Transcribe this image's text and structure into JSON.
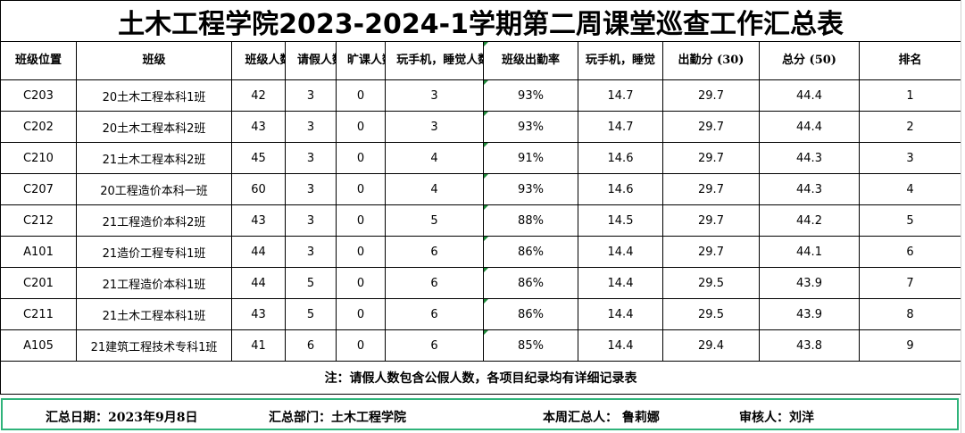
{
  "title": "土木工程学院2023-2024-1学期第二周课堂巡查工作汇总表",
  "headers": {
    "location": "班级位置",
    "class": "班级",
    "size": "班级人数",
    "leave": "请假人数",
    "absent": "旷课人数",
    "phone_sleep_count": "玩手机，睡觉人数",
    "attendance_rate": "班级出勤率",
    "phone_sleep_score": "玩手机，睡觉",
    "attendance_score": "出勤分 (30)",
    "total_score": "总分 (50)",
    "rank": "排名"
  },
  "rows": [
    {
      "location": "C203",
      "class": "20土木工程本科1班",
      "size": "42",
      "leave": "3",
      "absent": "0",
      "phone_sleep_count": "3",
      "attendance_rate": "93%",
      "phone_sleep_score": "14.7",
      "attendance_score": "29.7",
      "total_score": "44.4",
      "rank": "1"
    },
    {
      "location": "C202",
      "class": "20土木工程本科2班",
      "size": "43",
      "leave": "3",
      "absent": "0",
      "phone_sleep_count": "3",
      "attendance_rate": "93%",
      "phone_sleep_score": "14.7",
      "attendance_score": "29.7",
      "total_score": "44.4",
      "rank": "2"
    },
    {
      "location": "C210",
      "class": "21土木工程本科2班",
      "size": "45",
      "leave": "3",
      "absent": "0",
      "phone_sleep_count": "4",
      "attendance_rate": "91%",
      "phone_sleep_score": "14.6",
      "attendance_score": "29.7",
      "total_score": "44.3",
      "rank": "3"
    },
    {
      "location": "C207",
      "class": "20工程造价本科一班",
      "size": "60",
      "leave": "3",
      "absent": "0",
      "phone_sleep_count": "4",
      "attendance_rate": "93%",
      "phone_sleep_score": "14.6",
      "attendance_score": "29.7",
      "total_score": "44.3",
      "rank": "4"
    },
    {
      "location": "C212",
      "class": "21工程造价本科2班",
      "size": "43",
      "leave": "3",
      "absent": "0",
      "phone_sleep_count": "5",
      "attendance_rate": "88%",
      "phone_sleep_score": "14.5",
      "attendance_score": "29.7",
      "total_score": "44.2",
      "rank": "5"
    },
    {
      "location": "A101",
      "class": "21造价工程专科1班",
      "size": "44",
      "leave": "3",
      "absent": "0",
      "phone_sleep_count": "6",
      "attendance_rate": "86%",
      "phone_sleep_score": "14.4",
      "attendance_score": "29.7",
      "total_score": "44.1",
      "rank": "6"
    },
    {
      "location": "C201",
      "class": "21工程造价本科1班",
      "size": "44",
      "leave": "5",
      "absent": "0",
      "phone_sleep_count": "6",
      "attendance_rate": "86%",
      "phone_sleep_score": "14.4",
      "attendance_score": "29.5",
      "total_score": "43.9",
      "rank": "7"
    },
    {
      "location": "C211",
      "class": "21土木工程本科1班",
      "size": "43",
      "leave": "5",
      "absent": "0",
      "phone_sleep_count": "6",
      "attendance_rate": "86%",
      "phone_sleep_score": "14.4",
      "attendance_score": "29.5",
      "total_score": "43.9",
      "rank": "8"
    },
    {
      "location": "A105",
      "class": "21建筑工程技术专科1班",
      "size": "41",
      "leave": "6",
      "absent": "0",
      "phone_sleep_count": "6",
      "attendance_rate": "85%",
      "phone_sleep_score": "14.4",
      "attendance_score": "29.4",
      "total_score": "43.8",
      "rank": "9"
    }
  ],
  "note": "注：请假人数包含公假人数，各项目纪录均有详细记录表",
  "footer": {
    "date": "汇总日期：2023年9月8日",
    "department": "汇总部门：土木工程学院",
    "summarizer": "本周汇总人：  鲁莉娜",
    "reviewer": "审核人：刘洋"
  },
  "colors": {
    "border": "#000000",
    "footer_border": "#2fb37a",
    "cell_marker": "#1f8a3a"
  }
}
